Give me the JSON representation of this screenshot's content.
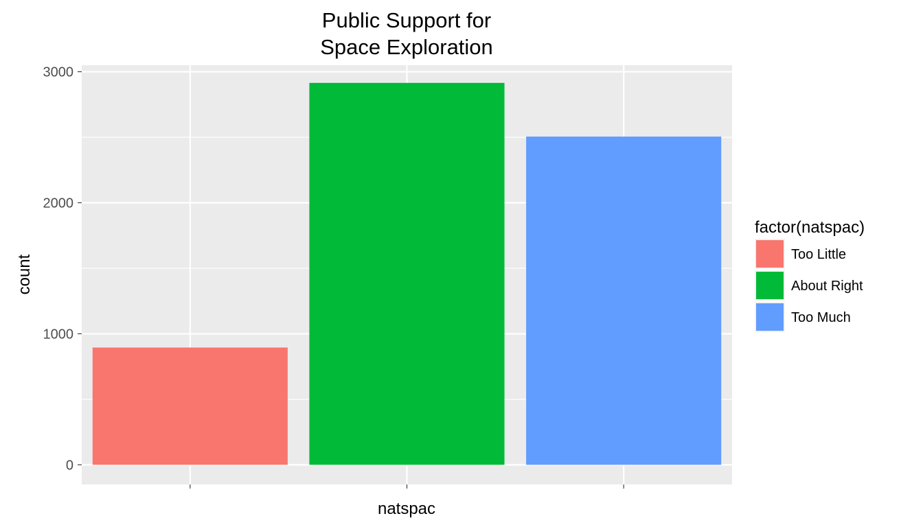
{
  "chart_data": {
    "type": "bar",
    "title_lines": [
      "Public Support for",
      "Space Exploration"
    ],
    "xlabel": "natspac",
    "ylabel": "count",
    "categories": [
      "Too Little",
      "About Right",
      "Too Much"
    ],
    "values": [
      895,
      2915,
      2505
    ],
    "colors": [
      "#F8766D",
      "#00BA38",
      "#619CFF"
    ],
    "ylim": [
      -150,
      3050
    ],
    "yticks": [
      0,
      1000,
      2000,
      3000
    ],
    "ytick_labels": [
      "0",
      "1000",
      "2000",
      "3000"
    ],
    "y_minor_gridlines": [
      500,
      1500,
      2500
    ],
    "grid": true,
    "panel_background": "#EBEBEB",
    "gridline_color": "#FFFFFF",
    "legend": {
      "title": "factor(natspac)",
      "placement": "right",
      "entries": [
        "Too Little",
        "About Right",
        "Too Much"
      ]
    }
  }
}
